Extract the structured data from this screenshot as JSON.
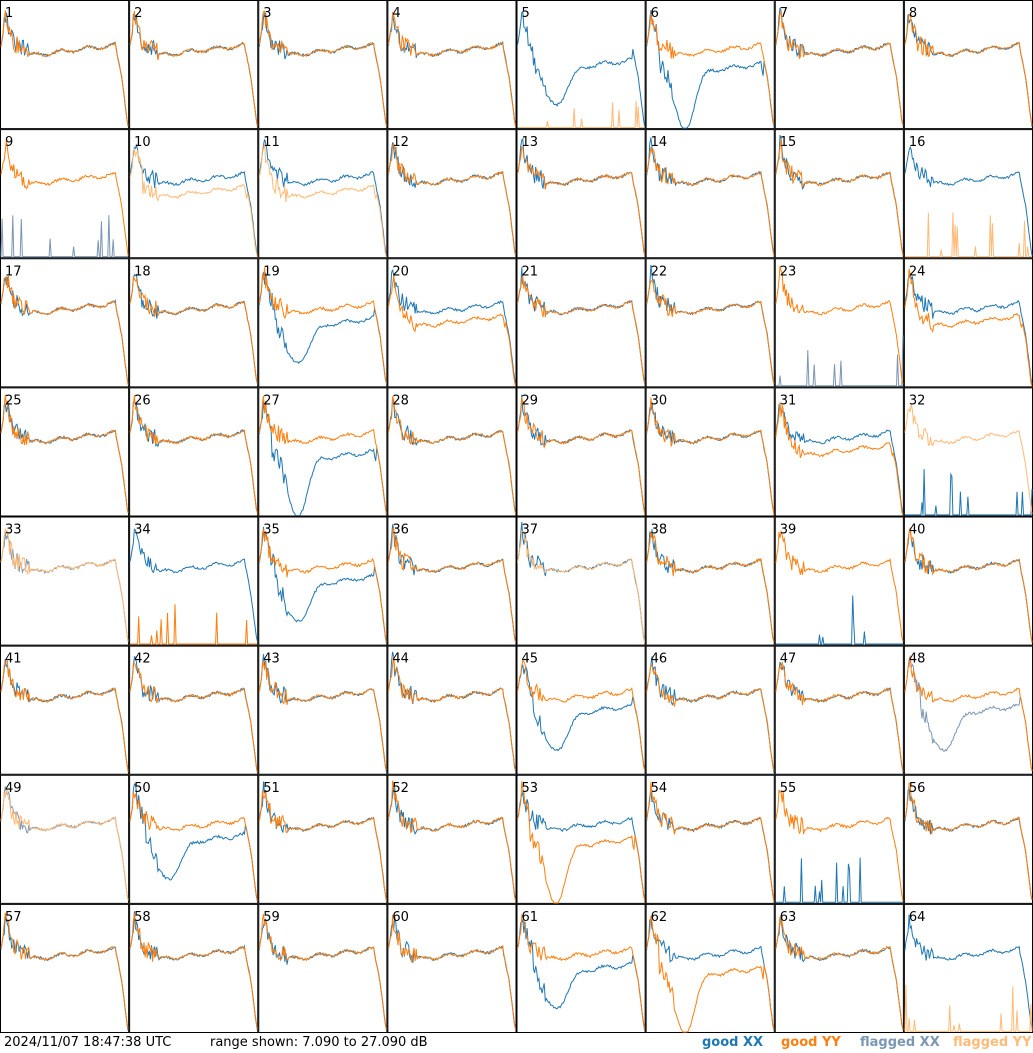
{
  "footer": {
    "timestamp": "2024/11/07 18:47:38 UTC",
    "range_text": "range shown: 7.090 to 27.090 dB",
    "legend": [
      "good XX",
      "good YY",
      "flagged XX",
      "flagged YY"
    ]
  },
  "colors": {
    "good_xx": "#1f77b4",
    "good_yy": "#ff7f0e",
    "flagged_xx": "#7b97b4",
    "flagged_yy": "#ffbb78"
  },
  "chart_data": {
    "type": "line",
    "layout": "8x8 small multiples, one per tile",
    "ylim": [
      7.09,
      27.09
    ],
    "yunit": "dB",
    "tiles": [
      {
        "label": "1",
        "xx": "good",
        "yy": "good",
        "xx_shape": "normal",
        "yy_shape": "normal"
      },
      {
        "label": "2",
        "xx": "good",
        "yy": "good",
        "xx_shape": "normal",
        "yy_shape": "normal"
      },
      {
        "label": "3",
        "xx": "good",
        "yy": "good",
        "xx_shape": "normal",
        "yy_shape": "normal"
      },
      {
        "label": "4",
        "xx": "good",
        "yy": "good",
        "xx_shape": "normal",
        "yy_shape": "normal"
      },
      {
        "label": "5",
        "xx": "good",
        "yy": "flagged",
        "xx_shape": "dip",
        "yy_shape": "dead"
      },
      {
        "label": "6",
        "xx": "good",
        "yy": "good",
        "xx_shape": "deepdip",
        "yy_shape": "normal"
      },
      {
        "label": "7",
        "xx": "good",
        "yy": "good",
        "xx_shape": "normal",
        "yy_shape": "normal"
      },
      {
        "label": "8",
        "xx": "good",
        "yy": "good",
        "xx_shape": "normal",
        "yy_shape": "normal"
      },
      {
        "label": "9",
        "xx": "flagged",
        "yy": "good",
        "xx_shape": "dead",
        "yy_shape": "normal"
      },
      {
        "label": "10",
        "xx": "good",
        "yy": "flagged",
        "xx_shape": "normal",
        "yy_shape": "low"
      },
      {
        "label": "11",
        "xx": "good",
        "yy": "flagged",
        "xx_shape": "normal",
        "yy_shape": "low"
      },
      {
        "label": "12",
        "xx": "good",
        "yy": "good",
        "xx_shape": "normal",
        "yy_shape": "normal"
      },
      {
        "label": "13",
        "xx": "good",
        "yy": "good",
        "xx_shape": "normal",
        "yy_shape": "normal"
      },
      {
        "label": "14",
        "xx": "good",
        "yy": "good",
        "xx_shape": "normal",
        "yy_shape": "normal"
      },
      {
        "label": "15",
        "xx": "good",
        "yy": "good",
        "xx_shape": "normal",
        "yy_shape": "normal"
      },
      {
        "label": "16",
        "xx": "good",
        "yy": "flagged",
        "xx_shape": "normal",
        "yy_shape": "dead"
      },
      {
        "label": "17",
        "xx": "good",
        "yy": "good",
        "xx_shape": "normal",
        "yy_shape": "normal"
      },
      {
        "label": "18",
        "xx": "good",
        "yy": "good",
        "xx_shape": "normal",
        "yy_shape": "normal"
      },
      {
        "label": "19",
        "xx": "good",
        "yy": "good",
        "xx_shape": "dip",
        "yy_shape": "normal"
      },
      {
        "label": "20",
        "xx": "good",
        "yy": "good",
        "xx_shape": "normal",
        "yy_shape": "low"
      },
      {
        "label": "21",
        "xx": "good",
        "yy": "good",
        "xx_shape": "normal",
        "yy_shape": "normal"
      },
      {
        "label": "22",
        "xx": "good",
        "yy": "good",
        "xx_shape": "normal",
        "yy_shape": "normal"
      },
      {
        "label": "23",
        "xx": "flagged",
        "yy": "good",
        "xx_shape": "dead",
        "yy_shape": "normal"
      },
      {
        "label": "24",
        "xx": "good",
        "yy": "good",
        "xx_shape": "normal",
        "yy_shape": "low"
      },
      {
        "label": "25",
        "xx": "good",
        "yy": "good",
        "xx_shape": "normal",
        "yy_shape": "normal"
      },
      {
        "label": "26",
        "xx": "good",
        "yy": "good",
        "xx_shape": "normal",
        "yy_shape": "normal"
      },
      {
        "label": "27",
        "xx": "good",
        "yy": "good",
        "xx_shape": "deepdip",
        "yy_shape": "normal"
      },
      {
        "label": "28",
        "xx": "good",
        "yy": "good",
        "xx_shape": "normal",
        "yy_shape": "normal"
      },
      {
        "label": "29",
        "xx": "good",
        "yy": "good",
        "xx_shape": "normal",
        "yy_shape": "normal"
      },
      {
        "label": "30",
        "xx": "good",
        "yy": "good",
        "xx_shape": "normal",
        "yy_shape": "normal"
      },
      {
        "label": "31",
        "xx": "good",
        "yy": "good",
        "xx_shape": "normal",
        "yy_shape": "low"
      },
      {
        "label": "32",
        "xx": "good",
        "yy": "flagged",
        "xx_shape": "dead",
        "yy_shape": "normal"
      },
      {
        "label": "33",
        "xx": "flagged",
        "yy": "flagged",
        "xx_shape": "normal",
        "yy_shape": "normal"
      },
      {
        "label": "34",
        "xx": "good",
        "yy": "good",
        "xx_shape": "normal",
        "yy_shape": "dead"
      },
      {
        "label": "35",
        "xx": "good",
        "yy": "good",
        "xx_shape": "dip",
        "yy_shape": "normal"
      },
      {
        "label": "36",
        "xx": "good",
        "yy": "good",
        "xx_shape": "normal",
        "yy_shape": "normal"
      },
      {
        "label": "37",
        "xx": "good",
        "yy": "flagged",
        "xx_shape": "normal",
        "yy_shape": "normal"
      },
      {
        "label": "38",
        "xx": "good",
        "yy": "good",
        "xx_shape": "normal",
        "yy_shape": "normal"
      },
      {
        "label": "39",
        "xx": "good",
        "yy": "good",
        "xx_shape": "dead",
        "yy_shape": "normal"
      },
      {
        "label": "40",
        "xx": "good",
        "yy": "good",
        "xx_shape": "normal",
        "yy_shape": "normal"
      },
      {
        "label": "41",
        "xx": "good",
        "yy": "good",
        "xx_shape": "normal",
        "yy_shape": "normal"
      },
      {
        "label": "42",
        "xx": "good",
        "yy": "good",
        "xx_shape": "normal",
        "yy_shape": "normal"
      },
      {
        "label": "43",
        "xx": "good",
        "yy": "good",
        "xx_shape": "normal",
        "yy_shape": "normal"
      },
      {
        "label": "44",
        "xx": "good",
        "yy": "good",
        "xx_shape": "normal",
        "yy_shape": "normal"
      },
      {
        "label": "45",
        "xx": "good",
        "yy": "good",
        "xx_shape": "dip",
        "yy_shape": "normal"
      },
      {
        "label": "46",
        "xx": "good",
        "yy": "good",
        "xx_shape": "normal",
        "yy_shape": "normal"
      },
      {
        "label": "47",
        "xx": "good",
        "yy": "good",
        "xx_shape": "normal",
        "yy_shape": "normal"
      },
      {
        "label": "48",
        "xx": "flagged",
        "yy": "good",
        "xx_shape": "dip",
        "yy_shape": "normal"
      },
      {
        "label": "49",
        "xx": "flagged",
        "yy": "flagged",
        "xx_shape": "normal",
        "yy_shape": "normal"
      },
      {
        "label": "50",
        "xx": "good",
        "yy": "good",
        "xx_shape": "dip",
        "yy_shape": "normal"
      },
      {
        "label": "51",
        "xx": "good",
        "yy": "good",
        "xx_shape": "normal",
        "yy_shape": "normal"
      },
      {
        "label": "52",
        "xx": "good",
        "yy": "good",
        "xx_shape": "normal",
        "yy_shape": "normal"
      },
      {
        "label": "53",
        "xx": "good",
        "yy": "good",
        "xx_shape": "normal",
        "yy_shape": "deepdip"
      },
      {
        "label": "54",
        "xx": "good",
        "yy": "good",
        "xx_shape": "normal",
        "yy_shape": "normal"
      },
      {
        "label": "55",
        "xx": "good",
        "yy": "good",
        "xx_shape": "dead",
        "yy_shape": "normal"
      },
      {
        "label": "56",
        "xx": "good",
        "yy": "good",
        "xx_shape": "normal",
        "yy_shape": "normal"
      },
      {
        "label": "57",
        "xx": "good",
        "yy": "good",
        "xx_shape": "normal",
        "yy_shape": "normal"
      },
      {
        "label": "58",
        "xx": "good",
        "yy": "good",
        "xx_shape": "normal",
        "yy_shape": "normal"
      },
      {
        "label": "59",
        "xx": "good",
        "yy": "good",
        "xx_shape": "normal",
        "yy_shape": "normal"
      },
      {
        "label": "60",
        "xx": "good",
        "yy": "good",
        "xx_shape": "normal",
        "yy_shape": "normal"
      },
      {
        "label": "61",
        "xx": "good",
        "yy": "good",
        "xx_shape": "dip",
        "yy_shape": "normal"
      },
      {
        "label": "62",
        "xx": "good",
        "yy": "good",
        "xx_shape": "normal",
        "yy_shape": "deepdip"
      },
      {
        "label": "63",
        "xx": "good",
        "yy": "good",
        "xx_shape": "normal",
        "yy_shape": "normal"
      },
      {
        "label": "64",
        "xx": "good",
        "yy": "flagged",
        "xx_shape": "normal",
        "yy_shape": "dead"
      }
    ]
  }
}
